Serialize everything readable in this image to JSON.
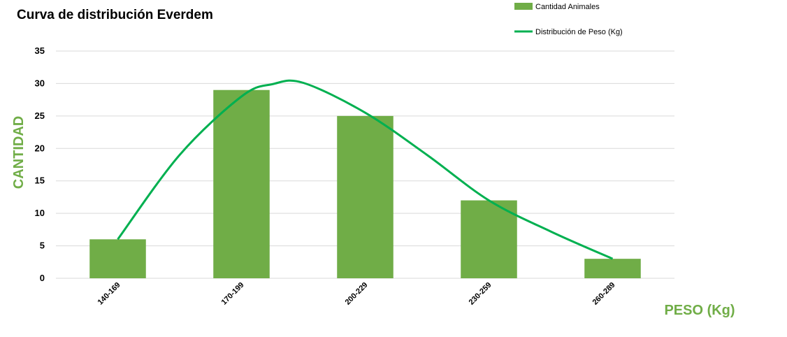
{
  "chart_data": {
    "type": "bar",
    "title": "Curva de distribución Everdem",
    "xlabel": "PESO (Kg)",
    "ylabel": "CANTIDAD",
    "categories": [
      "140-169",
      "170-199",
      "200-229",
      "230-259",
      "260-289"
    ],
    "series": [
      {
        "name": "Cantidad Animales",
        "type": "bar",
        "values": [
          6,
          29,
          25,
          12,
          3
        ]
      },
      {
        "name": "Distribución de Peso (Kg)",
        "type": "line",
        "smooth": true,
        "curve_points": [
          [
            0,
            6
          ],
          [
            0.5,
            19
          ],
          [
            1,
            28
          ],
          [
            1.25,
            29.9
          ],
          [
            1.5,
            30.1
          ],
          [
            2,
            25.5
          ],
          [
            2.5,
            19
          ],
          [
            3,
            12
          ],
          [
            3.5,
            7.2
          ],
          [
            4,
            3
          ]
        ]
      }
    ],
    "ylim": [
      0,
      35
    ],
    "yticks": [
      0,
      5,
      10,
      15,
      20,
      25,
      30,
      35
    ],
    "grid": true,
    "legend_position": "top-right",
    "colors": {
      "bar": "#70ad47",
      "line": "#00b050",
      "axis_label": "#70ad47",
      "grid": "#d9d9d9"
    }
  }
}
